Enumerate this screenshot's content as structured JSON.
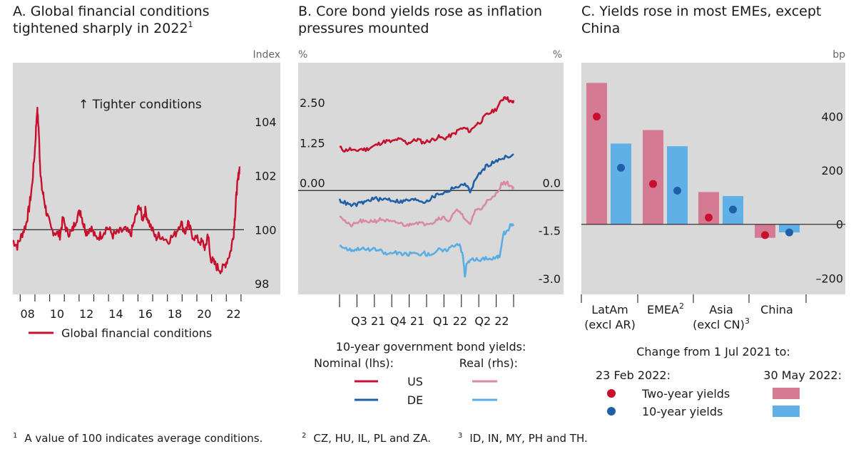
{
  "colors": {
    "background": "#d9d9d9",
    "red": "#c8102e",
    "blue": "#1f5fa8",
    "pink": "#d98a9e",
    "lightblue": "#5aace4",
    "pinkbar": "#d57a93",
    "bluebar": "#5fb0e6",
    "zero_line": "#333333"
  },
  "footnotes": {
    "f1_mark": "1",
    "f1_text": "A value of 100 indicates average conditions.",
    "f2_mark": "2",
    "f2_text": "CZ, HU, IL, PL and ZA.",
    "f3_mark": "3",
    "f3_text": "ID, IN, MY, PH and TH."
  },
  "chart_data": [
    {
      "type": "line",
      "title_line1": "A. Global financial conditions",
      "title_line2": "tightened sharply in 2022",
      "title_sup": "1",
      "unit_label": "Index",
      "annotation": "↑ Tighter conditions",
      "ylim": [
        97.6,
        106.2
      ],
      "yticks": [
        98,
        100,
        102,
        104
      ],
      "ytick_labels": [
        "98",
        "100",
        "102",
        "104"
      ],
      "reference_line": 100,
      "xlim": [
        2007.0,
        2022.7
      ],
      "xticks": [
        2008,
        2010,
        2012,
        2014,
        2016,
        2018,
        2020,
        2022
      ],
      "xtick_labels": [
        "08",
        "10",
        "12",
        "14",
        "16",
        "18",
        "20",
        "22"
      ],
      "legend": "Global financial conditions",
      "series": [
        {
          "name": "Global financial conditions",
          "x": [
            2007.0,
            2007.3,
            2007.6,
            2007.9,
            2008.1,
            2008.3,
            2008.5,
            2008.65,
            2008.75,
            2008.85,
            2008.95,
            2009.1,
            2009.3,
            2009.6,
            2009.9,
            2010.2,
            2010.4,
            2010.7,
            2011.0,
            2011.3,
            2011.6,
            2011.8,
            2012.0,
            2012.3,
            2012.6,
            2013.0,
            2013.4,
            2013.8,
            2014.2,
            2014.6,
            2015.0,
            2015.3,
            2015.6,
            2015.8,
            2016.0,
            2016.3,
            2016.7,
            2017.0,
            2017.5,
            2018.0,
            2018.4,
            2018.7,
            2018.9,
            2019.2,
            2019.6,
            2019.9,
            2020.1,
            2020.25,
            2020.4,
            2020.6,
            2020.9,
            2021.2,
            2021.5,
            2021.8,
            2022.0,
            2022.1,
            2022.2,
            2022.3,
            2022.4
          ],
          "values": [
            99.6,
            99.4,
            99.8,
            100.2,
            100.8,
            101.6,
            103.0,
            104.5,
            103.8,
            102.4,
            101.6,
            101.2,
            100.6,
            100.0,
            99.9,
            99.8,
            100.4,
            99.9,
            99.9,
            100.4,
            100.7,
            100.2,
            99.9,
            100.1,
            99.7,
            99.8,
            100.1,
            99.8,
            99.9,
            100.0,
            99.8,
            100.4,
            100.9,
            100.4,
            100.7,
            100.2,
            99.7,
            99.8,
            99.6,
            99.8,
            100.3,
            99.9,
            100.2,
            99.8,
            99.6,
            99.5,
            99.3,
            99.9,
            99.0,
            98.8,
            98.6,
            98.5,
            98.8,
            99.2,
            99.9,
            100.6,
            101.4,
            101.9,
            102.3
          ]
        }
      ]
    },
    {
      "type": "line",
      "title_line1": "B. Core bond yields rose as inflation",
      "title_line2": "pressures mounted",
      "left_unit": "%",
      "right_unit": "%",
      "left_axis": {
        "ylim": [
          -3.25,
          4.0
        ],
        "ticks": [
          0.0,
          1.25,
          2.5
        ],
        "tick_labels": [
          "0.00",
          "1.25",
          "2.50"
        ]
      },
      "right_axis": {
        "ylim": [
          -3.25,
          4.0
        ],
        "ticks": [
          0.0,
          -1.5,
          -3.0
        ],
        "tick_labels": [
          "0.0",
          "-1.5",
          "-3.0"
        ]
      },
      "reference_line": 0.0,
      "xlim": [
        0,
        100
      ],
      "xtick_positions": [
        10,
        20,
        30,
        40,
        50,
        60,
        70,
        80,
        90,
        100
      ],
      "xtick_labels": [
        "Q3 21",
        "Q4 21",
        "Q1 22",
        "Q2 22"
      ],
      "xtick_label_positions": [
        16.5,
        39,
        63.5,
        87.5
      ],
      "legend_title": "10-year government bond yields:",
      "legend_left_header": "Nominal (lhs):",
      "legend_right_header": "Real (rhs):",
      "legend_rows": [
        "US",
        "DE"
      ],
      "series": [
        {
          "name": "US nominal",
          "axis": "left",
          "x": [
            0,
            3,
            6,
            9,
            12,
            15,
            18,
            21,
            24,
            27,
            30,
            33,
            36,
            39,
            42,
            45,
            48,
            51,
            54,
            57,
            60,
            63,
            66,
            69,
            72,
            75,
            78,
            81,
            84,
            87,
            90,
            93,
            95,
            97,
            99,
            100
          ],
          "values": [
            1.35,
            1.25,
            1.3,
            1.22,
            1.3,
            1.28,
            1.35,
            1.42,
            1.5,
            1.55,
            1.52,
            1.6,
            1.58,
            1.48,
            1.55,
            1.6,
            1.5,
            1.55,
            1.6,
            1.68,
            1.62,
            1.7,
            1.78,
            1.92,
            1.95,
            1.85,
            2.05,
            2.15,
            2.35,
            2.45,
            2.55,
            2.8,
            2.95,
            2.85,
            2.75,
            2.78
          ]
        },
        {
          "name": "DE nominal",
          "axis": "left",
          "x": [
            0,
            3,
            6,
            9,
            12,
            15,
            18,
            21,
            24,
            27,
            30,
            33,
            36,
            39,
            42,
            45,
            48,
            51,
            54,
            57,
            60,
            63,
            66,
            69,
            72,
            75,
            78,
            81,
            84,
            87,
            90,
            93,
            96,
            100
          ],
          "values": [
            -0.3,
            -0.38,
            -0.46,
            -0.45,
            -0.4,
            -0.35,
            -0.28,
            -0.25,
            -0.3,
            -0.25,
            -0.3,
            -0.33,
            -0.35,
            -0.3,
            -0.3,
            -0.28,
            -0.36,
            -0.3,
            -0.2,
            -0.1,
            -0.08,
            0.0,
            0.12,
            0.1,
            0.25,
            -0.05,
            0.35,
            0.55,
            0.75,
            0.85,
            0.9,
            1.0,
            1.08,
            1.1
          ]
        },
        {
          "name": "US real",
          "axis": "right",
          "x": [
            0,
            3,
            6,
            9,
            12,
            15,
            18,
            21,
            24,
            27,
            30,
            33,
            36,
            39,
            42,
            45,
            48,
            51,
            54,
            57,
            60,
            63,
            66,
            69,
            72,
            75,
            78,
            81,
            84,
            87,
            90,
            93,
            96,
            98,
            100
          ],
          "values": [
            -0.75,
            -0.95,
            -1.1,
            -1.05,
            -0.95,
            -1.0,
            -0.95,
            -0.95,
            -0.9,
            -0.95,
            -1.0,
            -1.0,
            -1.05,
            -1.1,
            -1.0,
            -1.0,
            -1.05,
            -1.0,
            -1.0,
            -0.85,
            -0.85,
            -0.95,
            -0.7,
            -0.6,
            -0.95,
            -1.05,
            -0.6,
            -0.6,
            -0.35,
            -0.3,
            -0.1,
            0.2,
            0.25,
            0.15,
            0.1
          ]
        },
        {
          "name": "DE real",
          "axis": "right",
          "x": [
            0,
            3,
            6,
            9,
            12,
            15,
            18,
            21,
            24,
            27,
            30,
            33,
            36,
            39,
            42,
            45,
            48,
            51,
            54,
            57,
            60,
            63,
            66,
            69,
            71,
            72,
            73,
            75,
            78,
            81,
            84,
            87,
            90,
            92,
            94,
            96,
            98,
            100
          ],
          "values": [
            -1.7,
            -1.8,
            -1.85,
            -1.85,
            -1.8,
            -1.85,
            -1.85,
            -1.85,
            -1.9,
            -2.0,
            -1.95,
            -1.95,
            -2.0,
            -2.0,
            -1.95,
            -2.0,
            -1.95,
            -2.0,
            -1.95,
            -1.85,
            -1.9,
            -1.8,
            -1.7,
            -1.65,
            -2.1,
            -2.7,
            -2.3,
            -2.2,
            -2.15,
            -2.2,
            -2.1,
            -2.15,
            -2.1,
            -2.05,
            -1.35,
            -1.3,
            -1.1,
            -1.05
          ]
        }
      ]
    },
    {
      "type": "bar",
      "title_line1": "C. Yields rose in most EMEs, except",
      "title_line2": "China",
      "unit_label": "bp",
      "ylim": [
        -260,
        600
      ],
      "yticks": [
        -200,
        0,
        200,
        400
      ],
      "ytick_labels": [
        "–200",
        "0",
        "200",
        "400"
      ],
      "categories": [
        {
          "line1": "LatAm",
          "line2": "(excl AR)",
          "sup": ""
        },
        {
          "line1": "EMEA",
          "line2": "",
          "sup": "2"
        },
        {
          "line1": "Asia",
          "line2": "(excl CN)",
          "sup": "3"
        },
        {
          "line1": "China",
          "line2": "",
          "sup": ""
        }
      ],
      "legend_title": "Change from 1 Jul 2021 to:",
      "legend_left_header": "23 Feb 2022:",
      "legend_right_header": "30 May 2022:",
      "legend_rows": [
        "Two-year yields",
        "10-year yields"
      ],
      "series": [
        {
          "name": "Two-year yields 30 May 2022",
          "kind": "bar",
          "values": [
            525,
            350,
            120,
            -50
          ]
        },
        {
          "name": "10-year yields 30 May 2022",
          "kind": "bar",
          "values": [
            300,
            290,
            105,
            -30
          ]
        },
        {
          "name": "Two-year yields 23 Feb 2022",
          "kind": "dot",
          "values": [
            400,
            150,
            25,
            -40
          ]
        },
        {
          "name": "10-year yields 23 Feb 2022",
          "kind": "dot",
          "values": [
            210,
            125,
            55,
            -30
          ]
        }
      ]
    }
  ]
}
